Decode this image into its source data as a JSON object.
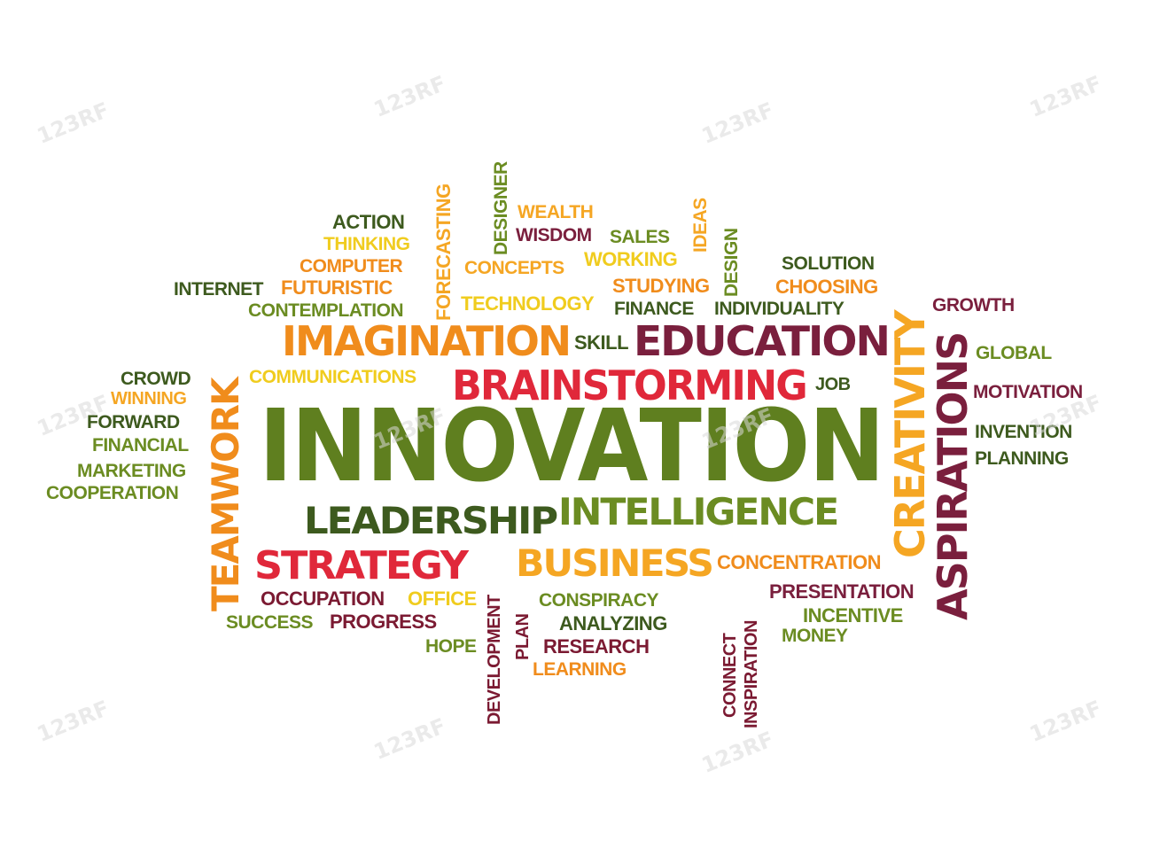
{
  "palette": {
    "olive": "#5f7f1f",
    "green": "#6b8c22",
    "dark_green": "#3d5a1e",
    "maroon": "#7a1f3d",
    "dark_red": "#7b1a32",
    "red": "#e0283a",
    "orange": "#f08c1c",
    "light_orange": "#f5a623",
    "yellow": "#f0cc1e"
  },
  "watermark": "123RF",
  "words": [
    {
      "text": "INNOVATION",
      "color": "olive"
    },
    {
      "text": "IMAGINATION",
      "color": "orange"
    },
    {
      "text": "EDUCATION",
      "color": "maroon"
    },
    {
      "text": "BRAINSTORMING",
      "color": "red"
    },
    {
      "text": "LEADERSHIP",
      "color": "dark_green"
    },
    {
      "text": "INTELLIGENCE",
      "color": "green"
    },
    {
      "text": "STRATEGY",
      "color": "red"
    },
    {
      "text": "BUSINESS",
      "color": "light_orange"
    },
    {
      "text": "TEAMWORK",
      "color": "orange"
    },
    {
      "text": "CREATIVITY",
      "color": "light_orange"
    },
    {
      "text": "ASPIRATIONS",
      "color": "maroon"
    },
    {
      "text": "FORECASTING",
      "color": "light_orange"
    },
    {
      "text": "DESIGNER",
      "color": "green"
    },
    {
      "text": "IDEAS",
      "color": "light_orange"
    },
    {
      "text": "DESIGN",
      "color": "green"
    },
    {
      "text": "DEVELOPMENT",
      "color": "dark_red"
    },
    {
      "text": "PLAN",
      "color": "dark_red"
    },
    {
      "text": "CONNECT",
      "color": "dark_red"
    },
    {
      "text": "INSPIRATION",
      "color": "dark_red"
    },
    {
      "text": "ACTION",
      "color": "dark_green"
    },
    {
      "text": "THINKING",
      "color": "yellow"
    },
    {
      "text": "COMPUTER",
      "color": "orange"
    },
    {
      "text": "INTERNET",
      "color": "dark_green"
    },
    {
      "text": "FUTURISTIC",
      "color": "orange"
    },
    {
      "text": "CONTEMPLATION",
      "color": "green"
    },
    {
      "text": "WEALTH",
      "color": "light_orange"
    },
    {
      "text": "WISDOM",
      "color": "maroon"
    },
    {
      "text": "SALES",
      "color": "green"
    },
    {
      "text": "CONCEPTS",
      "color": "light_orange"
    },
    {
      "text": "WORKING",
      "color": "yellow"
    },
    {
      "text": "STUDYING",
      "color": "orange"
    },
    {
      "text": "TECHNOLOGY",
      "color": "yellow"
    },
    {
      "text": "FINANCE",
      "color": "dark_green"
    },
    {
      "text": "INDIVIDUALITY",
      "color": "dark_green"
    },
    {
      "text": "SOLUTION",
      "color": "dark_green"
    },
    {
      "text": "CHOOSING",
      "color": "orange"
    },
    {
      "text": "GROWTH",
      "color": "maroon"
    },
    {
      "text": "GLOBAL",
      "color": "green"
    },
    {
      "text": "MOTIVATION",
      "color": "maroon"
    },
    {
      "text": "INVENTION",
      "color": "dark_green"
    },
    {
      "text": "PLANNING",
      "color": "dark_green"
    },
    {
      "text": "SKILL",
      "color": "dark_green"
    },
    {
      "text": "COMMUNICATIONS",
      "color": "yellow"
    },
    {
      "text": "JOB",
      "color": "dark_green"
    },
    {
      "text": "CROWD",
      "color": "dark_green"
    },
    {
      "text": "WINNING",
      "color": "light_orange"
    },
    {
      "text": "FORWARD",
      "color": "dark_green"
    },
    {
      "text": "FINANCIAL",
      "color": "green"
    },
    {
      "text": "MARKETING",
      "color": "green"
    },
    {
      "text": "COOPERATION",
      "color": "green"
    },
    {
      "text": "CONCENTRATION",
      "color": "orange"
    },
    {
      "text": "PRESENTATION",
      "color": "maroon"
    },
    {
      "text": "INCENTIVE",
      "color": "green"
    },
    {
      "text": "MONEY",
      "color": "green"
    },
    {
      "text": "OCCUPATION",
      "color": "dark_red"
    },
    {
      "text": "OFFICE",
      "color": "yellow"
    },
    {
      "text": "SUCCESS",
      "color": "green"
    },
    {
      "text": "PROGRESS",
      "color": "dark_red"
    },
    {
      "text": "CONSPIRACY",
      "color": "green"
    },
    {
      "text": "ANALYZING",
      "color": "dark_green"
    },
    {
      "text": "RESEARCH",
      "color": "dark_red"
    },
    {
      "text": "LEARNING",
      "color": "orange"
    },
    {
      "text": "HOPE",
      "color": "green"
    }
  ]
}
